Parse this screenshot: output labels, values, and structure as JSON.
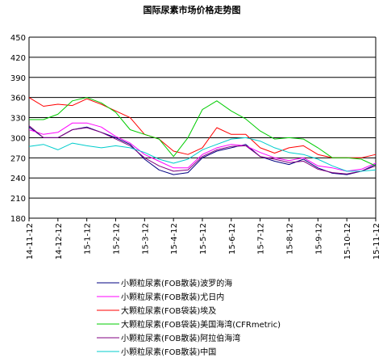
{
  "chart_data": {
    "type": "line",
    "title": "国际尿素市场价格走势图",
    "xlabel": "",
    "ylabel": "",
    "ylim": [
      180,
      450
    ],
    "y_ticks": [
      180,
      210,
      240,
      270,
      300,
      330,
      360,
      390,
      420,
      450
    ],
    "x_ticks": [
      "14-11-12",
      "14-12-12",
      "15-1-12",
      "15-2-12",
      "15-3-12",
      "15-4-12",
      "15-5-12",
      "15-6-12",
      "15-7-12",
      "15-8-12",
      "15-9-12",
      "15-10-12",
      "15-11-12"
    ],
    "grid": "horizontal",
    "legend_position": "bottom",
    "x": [
      "14-11-12",
      "14-11-26",
      "14-12-12",
      "14-12-26",
      "15-1-12",
      "15-1-26",
      "15-2-12",
      "15-2-26",
      "15-3-12",
      "15-3-26",
      "15-4-12",
      "15-4-26",
      "15-5-12",
      "15-5-26",
      "15-6-12",
      "15-6-26",
      "15-7-12",
      "15-7-26",
      "15-8-12",
      "15-8-26",
      "15-9-12",
      "15-9-26",
      "15-10-12",
      "15-10-26",
      "15-11-12"
    ],
    "series": [
      {
        "name": "小颗粒尿素(FOB散装)波罗的海",
        "color": "#000080",
        "values": [
          316,
          300,
          300,
          312,
          316,
          308,
          300,
          290,
          268,
          252,
          245,
          248,
          270,
          280,
          285,
          290,
          272,
          265,
          260,
          268,
          255,
          247,
          245,
          250,
          260
        ]
      },
      {
        "name": "小颗粒尿素(FOB散装)尤日内",
        "color": "#ff00ff",
        "values": [
          312,
          305,
          308,
          322,
          322,
          316,
          302,
          292,
          275,
          265,
          255,
          255,
          275,
          285,
          290,
          288,
          278,
          270,
          266,
          270,
          258,
          255,
          250,
          253,
          262
        ]
      },
      {
        "name": "大颗粒尿素(FOB袋装)埃及",
        "color": "#ff0000",
        "values": [
          360,
          347,
          350,
          348,
          358,
          350,
          340,
          330,
          305,
          298,
          280,
          275,
          285,
          315,
          305,
          305,
          285,
          277,
          285,
          288,
          275,
          270,
          270,
          270,
          275
        ]
      },
      {
        "name": "大颗粒尿素(FOB袋装)美国海湾(CFRmetric)",
        "color": "#00cc00",
        "values": [
          327,
          327,
          335,
          355,
          360,
          352,
          338,
          312,
          305,
          298,
          272,
          300,
          342,
          355,
          340,
          328,
          310,
          298,
          300,
          298,
          285,
          270,
          270,
          268,
          258
        ]
      },
      {
        "name": "小颗粒尿素(FOB散装)阿拉伯海湾",
        "color": "#800080",
        "values": [
          318,
          300,
          300,
          312,
          315,
          308,
          298,
          288,
          270,
          258,
          250,
          252,
          272,
          282,
          287,
          288,
          272,
          268,
          263,
          265,
          253,
          248,
          246,
          250,
          258
        ]
      },
      {
        "name": "小颗粒尿素(FOB散装)中国",
        "color": "#00cccc",
        "values": [
          287,
          290,
          282,
          292,
          288,
          285,
          288,
          285,
          278,
          268,
          262,
          268,
          282,
          290,
          298,
          300,
          295,
          285,
          278,
          275,
          268,
          258,
          250,
          250,
          252
        ]
      }
    ]
  }
}
